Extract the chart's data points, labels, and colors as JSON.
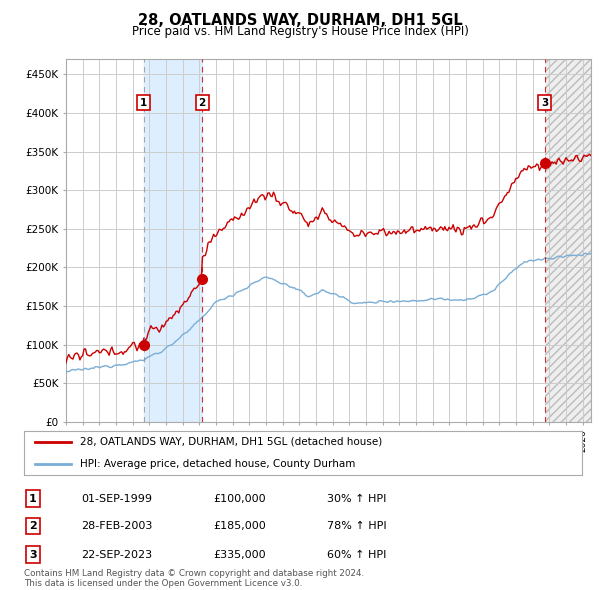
{
  "title": "28, OATLANDS WAY, DURHAM, DH1 5GL",
  "subtitle": "Price paid vs. HM Land Registry's House Price Index (HPI)",
  "xlim_start": 1995.0,
  "xlim_end": 2026.5,
  "ylim": [
    0,
    470000
  ],
  "yticks": [
    0,
    50000,
    100000,
    150000,
    200000,
    250000,
    300000,
    350000,
    400000,
    450000
  ],
  "ytick_labels": [
    "£0",
    "£50K",
    "£100K",
    "£150K",
    "£200K",
    "£250K",
    "£300K",
    "£350K",
    "£400K",
    "£450K"
  ],
  "sale1_date": 1999.667,
  "sale1_price": 100000,
  "sale2_date": 2003.167,
  "sale2_price": 185000,
  "sale3_date": 2023.722,
  "sale3_price": 335000,
  "legend_line1": "28, OATLANDS WAY, DURHAM, DH1 5GL (detached house)",
  "legend_line2": "HPI: Average price, detached house, County Durham",
  "table_row1": [
    "1",
    "01-SEP-1999",
    "£100,000",
    "30% ↑ HPI"
  ],
  "table_row2": [
    "2",
    "28-FEB-2003",
    "£185,000",
    "78% ↑ HPI"
  ],
  "table_row3": [
    "3",
    "22-SEP-2023",
    "£335,000",
    "60% ↑ HPI"
  ],
  "footer": "Contains HM Land Registry data © Crown copyright and database right 2024.\nThis data is licensed under the Open Government Licence v3.0.",
  "red_color": "#cc0000",
  "blue_color": "#7aaed6",
  "bg_color": "#ffffff",
  "grid_color": "#cccccc",
  "shaded_color": "#ddeeff"
}
